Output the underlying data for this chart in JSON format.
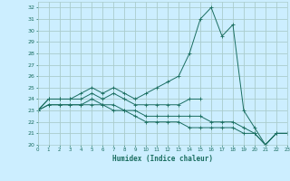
{
  "title": "",
  "xlabel": "Humidex (Indice chaleur)",
  "bg_color": "#cceeff",
  "grid_color": "#aacccc",
  "line_color": "#1a6e60",
  "x": [
    0,
    1,
    2,
    3,
    4,
    5,
    6,
    7,
    8,
    9,
    10,
    11,
    12,
    13,
    14,
    15,
    16,
    17,
    18,
    19,
    20,
    21,
    22,
    23
  ],
  "series1": [
    23,
    24,
    24,
    24,
    24.5,
    25,
    24.5,
    25,
    24.5,
    24,
    24.5,
    25,
    25.5,
    26,
    28,
    31,
    32,
    29.5,
    30.5,
    23,
    21.5,
    20,
    21,
    21
  ],
  "series2": [
    23,
    24,
    24,
    24,
    24,
    24.5,
    24,
    24.5,
    24,
    23.5,
    23.5,
    23.5,
    23.5,
    23.5,
    24,
    24,
    null,
    null,
    null,
    null,
    null,
    null,
    null,
    null
  ],
  "series3": [
    23,
    23.5,
    23.5,
    23.5,
    23.5,
    24,
    23.5,
    23.5,
    23,
    23,
    22.5,
    22.5,
    22.5,
    22.5,
    22.5,
    22.5,
    22,
    22,
    22,
    21.5,
    21,
    20,
    21,
    21
  ],
  "series4": [
    23,
    23.5,
    23.5,
    23.5,
    23.5,
    23.5,
    23.5,
    23,
    23,
    22.5,
    22,
    22,
    22,
    22,
    21.5,
    21.5,
    21.5,
    21.5,
    21.5,
    21,
    21,
    20,
    21,
    21
  ],
  "ylim": [
    20,
    32.5
  ],
  "xlim": [
    0,
    23
  ],
  "yticks": [
    20,
    21,
    22,
    23,
    24,
    25,
    26,
    27,
    28,
    29,
    30,
    31,
    32
  ],
  "xticks": [
    0,
    1,
    2,
    3,
    4,
    5,
    6,
    7,
    8,
    9,
    10,
    11,
    12,
    13,
    14,
    15,
    16,
    17,
    18,
    19,
    20,
    21,
    22,
    23
  ]
}
